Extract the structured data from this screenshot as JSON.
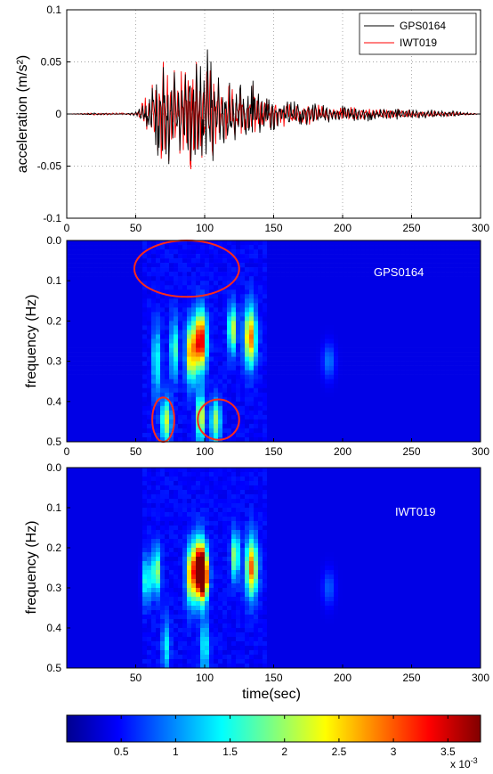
{
  "chart_data": [
    {
      "type": "line",
      "xlabel": "",
      "ylabel": "acceleration (m/s²)",
      "xlim": [
        0,
        300
      ],
      "ylim": [
        -0.1,
        0.1
      ],
      "x_ticks": [
        "0",
        "50",
        "100",
        "150",
        "200",
        "250",
        "300"
      ],
      "y_ticks": [
        "-0.1",
        "-0.05",
        "0",
        "0.05",
        "0.1"
      ],
      "grid": true,
      "legend_position": "top-right",
      "series": [
        {
          "name": "GPS0164",
          "color": "#000000",
          "x": [
            0,
            20,
            40,
            50,
            55,
            58,
            62,
            66,
            70,
            74,
            78,
            82,
            86,
            90,
            94,
            98,
            102,
            106,
            110,
            114,
            118,
            122,
            126,
            130,
            135,
            140,
            145,
            150,
            160,
            170,
            180,
            190,
            200,
            220,
            240,
            260,
            280,
            300
          ],
          "values": [
            0.0,
            0.001,
            0.0,
            0.002,
            0.008,
            -0.012,
            0.025,
            -0.04,
            0.045,
            -0.048,
            0.04,
            -0.035,
            0.038,
            -0.045,
            0.048,
            -0.04,
            0.062,
            -0.045,
            0.035,
            -0.028,
            0.03,
            -0.025,
            0.028,
            -0.02,
            0.032,
            -0.018,
            0.015,
            -0.015,
            0.012,
            -0.01,
            0.01,
            -0.008,
            0.008,
            -0.006,
            0.005,
            -0.004,
            0.003,
            0.0
          ]
        },
        {
          "name": "IWT019",
          "color": "#ff0000",
          "x": [
            0,
            20,
            40,
            50,
            55,
            58,
            62,
            66,
            70,
            74,
            78,
            82,
            86,
            90,
            94,
            98,
            102,
            106,
            110,
            114,
            118,
            122,
            126,
            130,
            135,
            140,
            145,
            150,
            160,
            170,
            180,
            190,
            200,
            220,
            240,
            260,
            280,
            300
          ],
          "values": [
            0.0,
            -0.001,
            0.001,
            0.0,
            0.01,
            -0.015,
            0.028,
            -0.035,
            0.05,
            -0.045,
            0.042,
            -0.038,
            0.04,
            -0.053,
            0.05,
            -0.042,
            0.04,
            -0.04,
            0.032,
            -0.025,
            0.028,
            -0.022,
            0.025,
            -0.018,
            0.028,
            -0.015,
            0.014,
            -0.013,
            0.011,
            -0.009,
            0.009,
            -0.007,
            0.007,
            -0.005,
            0.004,
            -0.003,
            0.002,
            0.0
          ]
        }
      ]
    },
    {
      "type": "heatmap",
      "label": "GPS0164",
      "xlabel": "",
      "ylabel": "frequency (Hz)",
      "xlim": [
        0,
        300
      ],
      "ylim": [
        0.5,
        0.0
      ],
      "x_ticks": [
        "0",
        "50",
        "100",
        "150",
        "200",
        "250",
        "300"
      ],
      "y_ticks": [
        "0.0",
        "0.1",
        "0.2",
        "0.3",
        "0.4",
        "0.5"
      ],
      "blobs": [
        {
          "t": 65,
          "f": 0.3,
          "amp": 0.3,
          "dt": 2,
          "df": 0.06
        },
        {
          "t": 72,
          "f": 0.45,
          "amp": 0.45,
          "dt": 2.5,
          "df": 0.04
        },
        {
          "t": 78,
          "f": 0.27,
          "amp": 0.35,
          "dt": 2,
          "df": 0.05
        },
        {
          "t": 90,
          "f": 0.28,
          "amp": 0.6,
          "dt": 2.5,
          "df": 0.05
        },
        {
          "t": 97,
          "f": 0.25,
          "amp": 0.85,
          "dt": 3,
          "df": 0.05
        },
        {
          "t": 97,
          "f": 0.44,
          "amp": 0.55,
          "dt": 2,
          "df": 0.04
        },
        {
          "t": 108,
          "f": 0.45,
          "amp": 0.4,
          "dt": 2.5,
          "df": 0.04
        },
        {
          "t": 120,
          "f": 0.22,
          "amp": 0.5,
          "dt": 2,
          "df": 0.04
        },
        {
          "t": 133,
          "f": 0.24,
          "amp": 0.65,
          "dt": 3,
          "df": 0.05
        },
        {
          "t": 190,
          "f": 0.3,
          "amp": 0.15,
          "dt": 3,
          "df": 0.03
        }
      ],
      "circles": [
        {
          "t": 87,
          "f": 0.07,
          "rt": 38,
          "rf": 0.07
        },
        {
          "t": 70,
          "f": 0.445,
          "rt": 8,
          "rf": 0.055
        },
        {
          "t": 110,
          "f": 0.445,
          "rt": 15,
          "rf": 0.05
        }
      ]
    },
    {
      "type": "heatmap",
      "label": "IWT019",
      "xlabel": "time(sec)",
      "ylabel": "frequency (Hz)",
      "xlim": [
        0,
        300
      ],
      "ylim": [
        0.5,
        0.0
      ],
      "x_ticks": [
        "50",
        "100",
        "150",
        "200",
        "250",
        "300"
      ],
      "y_ticks": [
        "0.0",
        "0.1",
        "0.2",
        "0.3",
        "0.4",
        "0.5"
      ],
      "blobs": [
        {
          "t": 58,
          "f": 0.28,
          "amp": 0.35,
          "dt": 2,
          "df": 0.04
        },
        {
          "t": 65,
          "f": 0.26,
          "amp": 0.45,
          "dt": 2,
          "df": 0.04
        },
        {
          "t": 72,
          "f": 0.45,
          "amp": 0.25,
          "dt": 2,
          "df": 0.05
        },
        {
          "t": 90,
          "f": 0.27,
          "amp": 0.55,
          "dt": 2.5,
          "df": 0.05
        },
        {
          "t": 96,
          "f": 0.25,
          "amp": 0.8,
          "dt": 3,
          "df": 0.05
        },
        {
          "t": 99,
          "f": 0.27,
          "amp": 0.9,
          "dt": 2.5,
          "df": 0.04
        },
        {
          "t": 100,
          "f": 0.45,
          "amp": 0.3,
          "dt": 2,
          "df": 0.05
        },
        {
          "t": 122,
          "f": 0.22,
          "amp": 0.45,
          "dt": 2,
          "df": 0.04
        },
        {
          "t": 134,
          "f": 0.25,
          "amp": 0.65,
          "dt": 3,
          "df": 0.05
        },
        {
          "t": 190,
          "f": 0.3,
          "amp": 0.12,
          "dt": 3,
          "df": 0.03
        }
      ]
    },
    {
      "type": "colorbar",
      "range": [
        0,
        3.8
      ],
      "ticks": [
        "0.5",
        "1",
        "1.5",
        "2",
        "2.5",
        "3",
        "3.5"
      ],
      "multiplier": "x 10",
      "exponent": "-3"
    }
  ]
}
